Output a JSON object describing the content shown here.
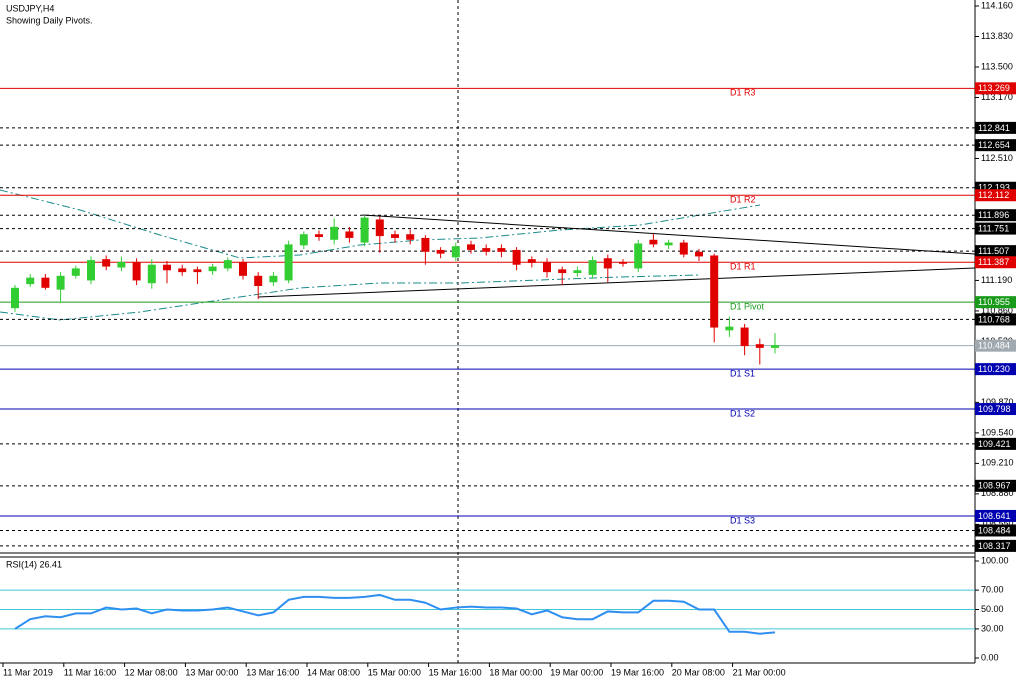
{
  "chart_data": {
    "type": "candlestick",
    "title": "USDJPY,H4",
    "subtitle": "Showing Daily Pivots.",
    "categories": [
      "11 Mar 2019",
      null,
      null,
      null,
      "11 Mar 16:00",
      null,
      null,
      null,
      "12 Mar 08:00",
      null,
      null,
      null,
      "13 Mar 00:00",
      null,
      null,
      null,
      "13 Mar 16:00",
      null,
      null,
      null,
      "14 Mar 08:00",
      null,
      null,
      null,
      "15 Mar 00:00",
      null,
      null,
      null,
      "15 Mar 16:00",
      null,
      null,
      null,
      "18 Mar 00:00",
      null,
      null,
      null,
      "19 Mar 00:00",
      null,
      null,
      null,
      "19 Mar 16:00",
      null,
      null,
      null,
      "20 Mar 08:00",
      null,
      null,
      null,
      "21 Mar 00:00",
      null,
      null
    ],
    "up_color": "#32cd32",
    "down_color": "#e00000",
    "open": [
      110.89,
      111.15,
      111.22,
      111.09,
      111.24,
      111.19,
      111.42,
      111.33,
      111.39,
      111.16,
      111.36,
      111.32,
      111.31,
      111.29,
      111.32,
      111.39,
      111.24,
      111.17,
      111.19,
      111.57,
      111.69,
      111.63,
      111.72,
      111.6,
      111.85,
      111.69,
      111.69,
      111.65,
      111.52,
      111.44,
      111.58,
      111.54,
      111.54,
      111.52,
      111.42,
      111.39,
      111.31,
      111.27,
      111.25,
      111.43,
      111.39,
      111.32,
      111.63,
      111.57,
      111.6,
      111.5,
      111.46,
      110.65,
      110.68,
      110.5,
      110.46
    ],
    "high": [
      111.14,
      111.26,
      111.26,
      111.28,
      111.35,
      111.45,
      111.46,
      111.45,
      111.43,
      111.42,
      111.4,
      111.36,
      111.34,
      111.37,
      111.44,
      111.42,
      111.28,
      111.28,
      111.62,
      111.72,
      111.73,
      111.86,
      111.77,
      111.89,
      111.88,
      111.73,
      111.74,
      111.68,
      111.55,
      111.6,
      111.62,
      111.58,
      111.58,
      111.55,
      111.45,
      111.43,
      111.34,
      111.34,
      111.45,
      111.47,
      111.42,
      111.63,
      111.7,
      111.63,
      111.63,
      111.53,
      111.48,
      110.8,
      110.72,
      110.56,
      110.62
    ],
    "low": [
      110.85,
      111.12,
      111.09,
      110.95,
      111.21,
      111.15,
      111.3,
      111.29,
      111.14,
      111.1,
      111.16,
      111.24,
      111.15,
      111.25,
      111.29,
      111.2,
      110.99,
      111.13,
      111.16,
      111.53,
      111.62,
      111.58,
      111.6,
      111.56,
      111.49,
      111.6,
      111.58,
      111.36,
      111.43,
      111.4,
      111.48,
      111.46,
      111.44,
      111.3,
      111.33,
      111.22,
      111.14,
      111.23,
      111.21,
      111.17,
      111.34,
      111.28,
      111.55,
      111.53,
      111.44,
      111.4,
      110.52,
      110.58,
      110.38,
      110.28,
      110.4
    ],
    "close": [
      111.11,
      111.22,
      111.11,
      111.24,
      111.32,
      111.41,
      111.34,
      111.39,
      111.19,
      111.36,
      111.3,
      111.28,
      111.28,
      111.34,
      111.41,
      111.24,
      111.13,
      111.24,
      111.58,
      111.69,
      111.66,
      111.77,
      111.65,
      111.87,
      111.67,
      111.65,
      111.63,
      111.5,
      111.48,
      111.56,
      111.52,
      111.5,
      111.5,
      111.36,
      111.38,
      111.28,
      111.27,
      111.3,
      111.41,
      111.32,
      111.37,
      111.59,
      111.58,
      111.6,
      111.47,
      111.45,
      110.68,
      110.69,
      110.48,
      110.46,
      110.49
    ],
    "ylim": [
      108.24,
      114.225
    ],
    "yticks": [
      {
        "value": 114.16,
        "label": "114.160"
      },
      {
        "value": 113.83,
        "label": "113.830"
      },
      {
        "value": 113.5,
        "label": "113.500"
      },
      {
        "value": 113.17,
        "label": "113.170"
      },
      {
        "value": 112.51,
        "label": "112.510"
      },
      {
        "value": 111.19,
        "label": "111.190"
      },
      {
        "value": 110.86,
        "label": "110.860"
      },
      {
        "value": 110.53,
        "label": "110.530"
      },
      {
        "value": 109.87,
        "label": "109.870"
      },
      {
        "value": 109.54,
        "label": "109.540"
      },
      {
        "value": 109.21,
        "label": "109.210"
      },
      {
        "value": 108.88,
        "label": "108.880"
      },
      {
        "value": 108.55,
        "label": "108.550"
      }
    ],
    "pivots": [
      {
        "name": "D1 R3",
        "value": 113.269,
        "color": "#e00000"
      },
      {
        "name": "D1 R2",
        "value": 112.112,
        "color": "#e00000"
      },
      {
        "name": "D1 R1",
        "value": 111.387,
        "color": "#e00000"
      },
      {
        "name": "D1 Pivot",
        "value": 110.955,
        "color": "#1a9a1a"
      },
      {
        "name": "D1 S1",
        "value": 110.23,
        "label": "110.230",
        "color": "#0000b0"
      },
      {
        "name": "D1 S2",
        "value": 109.798,
        "color": "#0000b0"
      },
      {
        "name": "D1 S3",
        "value": 108.641,
        "color": "#0000b0"
      }
    ],
    "levels": [
      112.841,
      112.654,
      112.193,
      111.896,
      111.751,
      111.507,
      110.768,
      109.421,
      108.967,
      108.484,
      108.317
    ],
    "current_price": 110.484,
    "rsi": {
      "title": "RSI(14) 26.41",
      "color": "#2f8ff0",
      "values": [
        30,
        40,
        43,
        42,
        46,
        46,
        52,
        50,
        51,
        46,
        50,
        49,
        49,
        50,
        52,
        48,
        44,
        47,
        60,
        63,
        63,
        62,
        62,
        63,
        65,
        60,
        60,
        57,
        50,
        52,
        53,
        52,
        52,
        51,
        45,
        49,
        42,
        40,
        40,
        48,
        47,
        47,
        59,
        59,
        58,
        50,
        50,
        27,
        27,
        25,
        26.41
      ],
      "ylim": [
        0,
        100
      ],
      "yticks": [
        {
          "value": 100,
          "label": "100.00"
        },
        {
          "value": 70,
          "label": "70.00"
        },
        {
          "value": 50,
          "label": "50.00"
        },
        {
          "value": 30,
          "label": "30.00"
        },
        {
          "value": 0,
          "label": "0.00"
        }
      ],
      "levels": [
        70,
        50,
        30
      ]
    }
  }
}
